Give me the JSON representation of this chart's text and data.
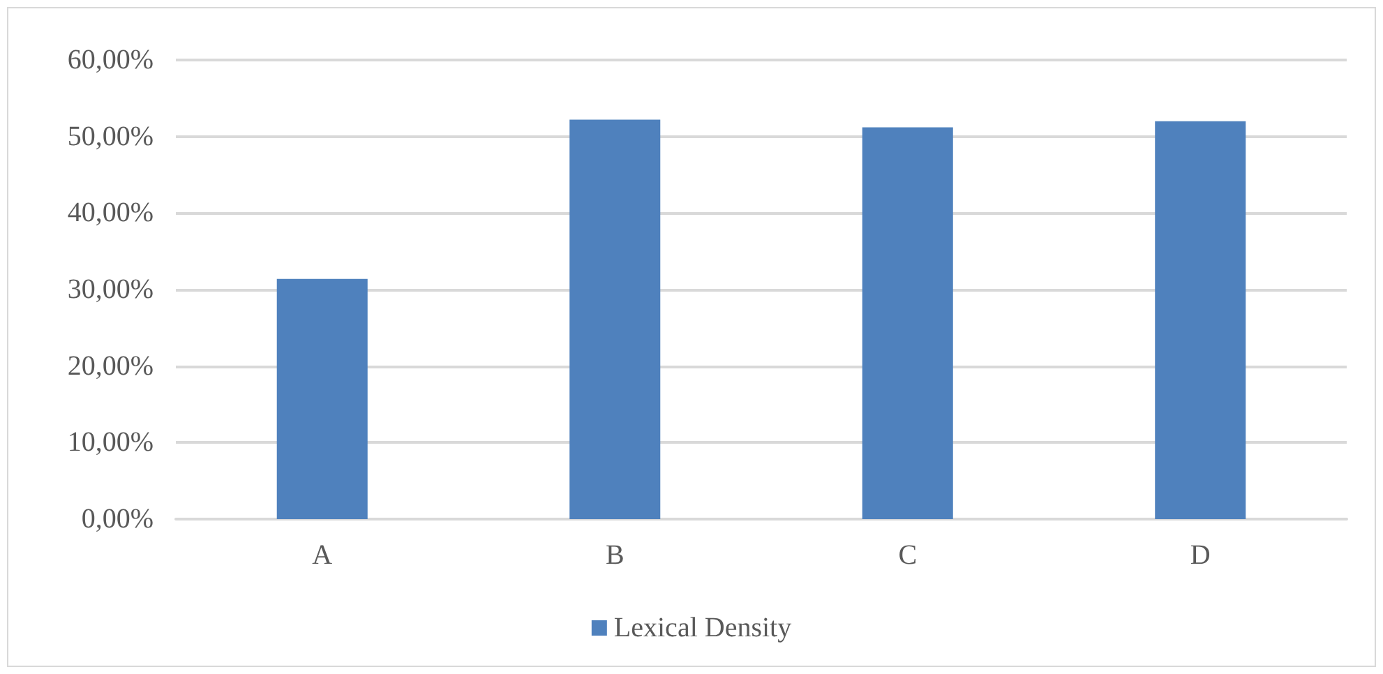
{
  "chart_data": {
    "type": "bar",
    "categories": [
      "A",
      "B",
      "C",
      "D"
    ],
    "series": [
      {
        "name": "Lexical Density",
        "color": "#4f81bd",
        "values": [
          31.4,
          52.2,
          51.2,
          52.0
        ]
      }
    ],
    "ylim": [
      0,
      60
    ],
    "yticks": [
      {
        "value": 0,
        "label": "0,00%"
      },
      {
        "value": 10,
        "label": "10,00%"
      },
      {
        "value": 20,
        "label": "20,00%"
      },
      {
        "value": 30,
        "label": "30,00%"
      },
      {
        "value": 40,
        "label": "40,00%"
      },
      {
        "value": 50,
        "label": "50,00%"
      },
      {
        "value": 60,
        "label": "60,00%"
      }
    ],
    "grid": "y",
    "legend": "bottom"
  }
}
